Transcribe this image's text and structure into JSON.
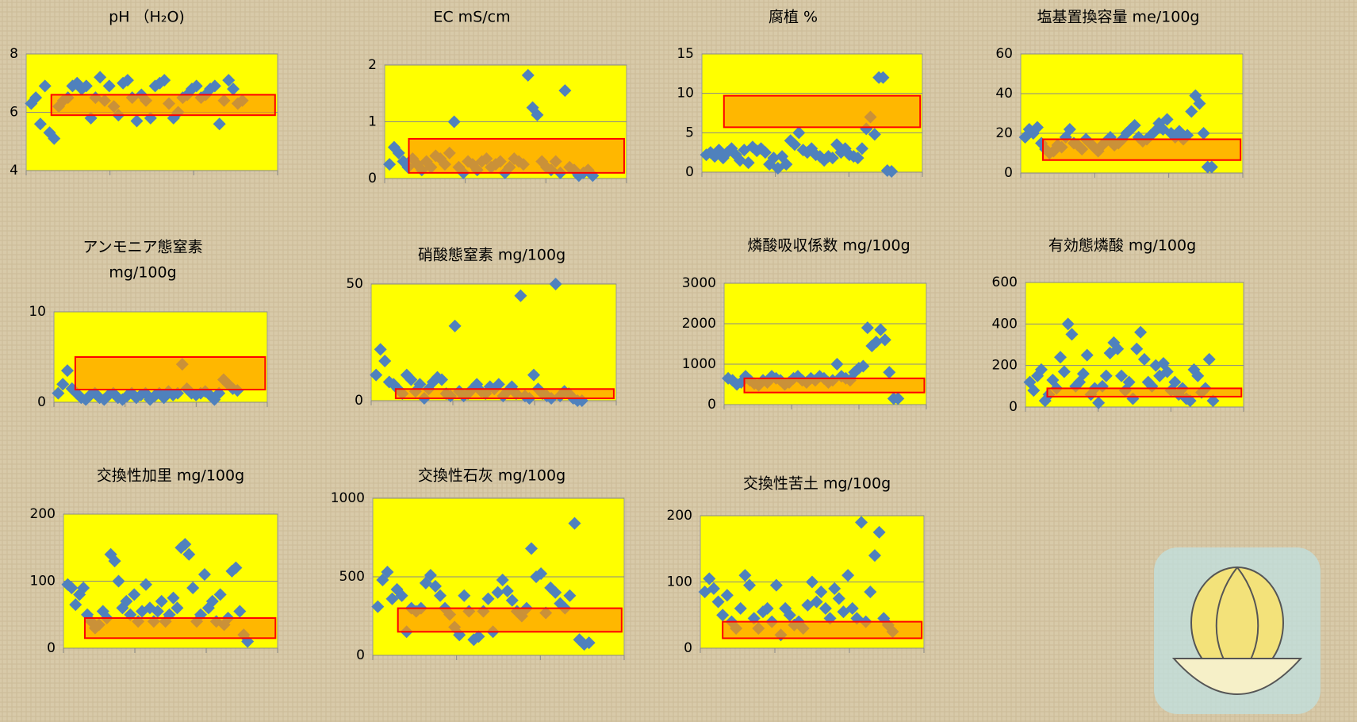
{
  "chart_data": [
    {
      "type": "scatter",
      "title": [
        "pH （H₂O)"
      ],
      "ylim": [
        4,
        8
      ],
      "yticks": [
        4,
        6,
        8
      ],
      "color": "#4f81bd",
      "plot_color": "#ffff00",
      "target_range": [
        5.9,
        6.6
      ],
      "target_color": "#ff9900",
      "values": [
        6.3,
        6.5,
        5.6,
        6.9,
        5.3,
        5.1,
        6.2,
        6.4,
        6.5,
        6.9,
        7.0,
        6.8,
        6.9,
        5.8,
        6.5,
        7.2,
        6.4,
        6.9,
        6.2,
        5.9,
        7.0,
        7.1,
        6.5,
        5.7,
        6.6,
        6.4,
        5.8,
        6.9,
        7.0,
        7.1,
        6.3,
        5.8,
        6.0,
        6.5,
        6.6,
        6.8,
        6.9,
        6.5,
        6.6,
        6.8,
        6.9,
        5.6,
        6.4,
        7.1,
        6.8,
        6.3,
        6.4
      ]
    },
    {
      "type": "scatter",
      "title": [
        "EC mS/cm"
      ],
      "ylim": [
        0,
        2
      ],
      "yticks": [
        0,
        1,
        2
      ],
      "color": "#4f81bd",
      "plot_color": "#ffff00",
      "target_range": [
        0.1,
        0.7
      ],
      "target_color": "#ff9900",
      "values": [
        0.25,
        0.55,
        0.45,
        0.3,
        0.2,
        0.35,
        0.25,
        0.15,
        0.3,
        0.2,
        0.4,
        0.35,
        0.25,
        0.45,
        1.0,
        0.2,
        0.1,
        0.3,
        0.25,
        0.15,
        0.3,
        0.35,
        0.2,
        0.25,
        0.3,
        0.1,
        0.2,
        0.35,
        0.3,
        0.25,
        1.82,
        1.25,
        1.12,
        0.3,
        0.2,
        0.15,
        0.3,
        0.1,
        1.55,
        0.2,
        0.15,
        0.05,
        0.1,
        0.15,
        0.05
      ]
    },
    {
      "type": "scatter",
      "title": [
        "腐植 %"
      ],
      "ylim": [
        0,
        15
      ],
      "yticks": [
        0,
        5,
        10,
        15
      ],
      "color": "#4f81bd",
      "plot_color": "#ffff00",
      "target_range": [
        5.7,
        9.7
      ],
      "target_color": "#ff9900",
      "values": [
        2.2,
        2.5,
        2.0,
        2.8,
        1.8,
        2.5,
        3.0,
        2.2,
        1.5,
        2.8,
        1.2,
        3.2,
        2.7,
        3.0,
        2.5,
        1.0,
        1.8,
        0.5,
        2.0,
        1.0,
        4.0,
        3.5,
        5.0,
        2.8,
        2.5,
        3.0,
        2.2,
        2.0,
        1.5,
        2.0,
        1.8,
        3.5,
        2.5,
        3.0,
        2.2,
        2.0,
        1.8,
        3.0,
        5.5,
        7.0,
        4.8,
        12.0,
        12.0,
        0.2,
        0.1
      ]
    },
    {
      "type": "scatter",
      "title": [
        "塩基置換容量 me/100g"
      ],
      "ylim": [
        0,
        60
      ],
      "yticks": [
        0,
        20,
        40,
        60
      ],
      "color": "#4f81bd",
      "plot_color": "#ffff00",
      "target_range": [
        6.5,
        17
      ],
      "target_color": "#ff9900",
      "values": [
        18,
        22,
        20,
        23,
        15,
        12,
        10,
        11,
        14,
        13,
        18,
        22,
        15,
        14,
        12,
        17,
        15,
        13,
        11,
        14,
        16,
        18,
        14,
        15,
        17,
        20,
        22,
        24,
        18,
        16,
        17,
        19,
        21,
        25,
        22,
        27,
        20,
        18,
        21,
        17,
        19,
        31,
        39,
        35,
        20,
        3,
        3
      ]
    },
    {
      "type": "scatter",
      "title": [
        "アンモニア態窒素",
        "mg/100g"
      ],
      "ylim": [
        0,
        10
      ],
      "yticks": [
        0,
        10
      ],
      "color": "#4f81bd",
      "plot_color": "#ffff00",
      "target_range": [
        1.4,
        5
      ],
      "target_color": "#ff9900",
      "values": [
        1.0,
        2.0,
        3.5,
        1.5,
        1.0,
        0.5,
        0.3,
        0.8,
        1.0,
        0.5,
        0.3,
        0.8,
        1.0,
        0.5,
        0.3,
        0.7,
        1.0,
        0.5,
        0.8,
        1.0,
        0.3,
        0.7,
        1.0,
        0.5,
        1.2,
        0.8,
        1.0,
        4.2,
        1.5,
        1.0,
        0.8,
        1.0,
        1.2,
        0.8,
        0.3,
        1.0,
        2.5,
        2.0,
        1.5,
        1.3
      ]
    },
    {
      "type": "scatter",
      "title": [
        "硝酸態窒素 mg/100g"
      ],
      "ylim": [
        0,
        50
      ],
      "yticks": [
        0,
        50
      ],
      "color": "#4f81bd",
      "plot_color": "#ffff00",
      "target_range": [
        1,
        5
      ],
      "target_color": "#ff9900",
      "values": [
        11,
        22,
        17,
        8,
        7,
        5,
        3,
        11,
        9,
        4,
        7,
        1,
        5,
        8,
        10,
        9,
        3,
        2,
        32,
        4,
        2,
        3,
        5,
        7,
        4,
        3,
        6,
        5,
        7,
        2,
        4,
        6,
        3,
        45,
        2,
        1,
        11,
        5,
        3,
        2,
        1,
        50,
        2,
        4,
        3,
        1,
        0,
        0
      ]
    },
    {
      "type": "scatter",
      "title": [
        "燐酸吸収係数 mg/100g"
      ],
      "ylim": [
        0,
        3000
      ],
      "yticks": [
        0,
        1000,
        2000,
        3000
      ],
      "color": "#4f81bd",
      "plot_color": "#ffff00",
      "target_range": [
        300,
        650
      ],
      "target_color": "#ff9900",
      "values": [
        650,
        600,
        500,
        550,
        700,
        600,
        520,
        480,
        600,
        550,
        700,
        650,
        600,
        500,
        550,
        650,
        700,
        600,
        550,
        650,
        600,
        700,
        650,
        550,
        600,
        1000,
        700,
        650,
        600,
        800,
        900,
        950,
        1900,
        1450,
        1550,
        1850,
        1600,
        800,
        150,
        150
      ]
    },
    {
      "type": "scatter",
      "title": [
        "有効態燐酸 mg/100g"
      ],
      "ylim": [
        0,
        600
      ],
      "yticks": [
        0,
        200,
        400,
        600
      ],
      "color": "#4f81bd",
      "plot_color": "#ffff00",
      "target_range": [
        50,
        90
      ],
      "target_color": "#ff9900",
      "values": [
        120,
        80,
        150,
        180,
        30,
        60,
        130,
        90,
        240,
        170,
        400,
        350,
        100,
        120,
        160,
        250,
        60,
        90,
        20,
        100,
        150,
        260,
        310,
        280,
        150,
        80,
        120,
        40,
        280,
        360,
        230,
        120,
        100,
        200,
        150,
        210,
        170,
        80,
        120,
        60,
        90,
        40,
        30,
        180,
        150,
        70,
        90,
        230,
        30
      ]
    },
    {
      "type": "scatter",
      "title": [
        "交換性加里 mg/100g"
      ],
      "ylim": [
        0,
        200
      ],
      "yticks": [
        0,
        100,
        200
      ],
      "color": "#4f81bd",
      "plot_color": "#ffff00",
      "target_range": [
        15,
        45
      ],
      "target_color": "#ff9900",
      "values": [
        95,
        90,
        65,
        80,
        90,
        50,
        40,
        30,
        35,
        55,
        45,
        140,
        130,
        100,
        60,
        70,
        50,
        80,
        40,
        55,
        95,
        60,
        40,
        55,
        70,
        40,
        50,
        75,
        60,
        150,
        155,
        140,
        90,
        40,
        50,
        110,
        60,
        70,
        40,
        80,
        35,
        45,
        115,
        120,
        55,
        20,
        10
      ]
    },
    {
      "type": "scatter",
      "title": [
        "交換性石灰 mg/100g"
      ],
      "ylim": [
        0,
        1000
      ],
      "yticks": [
        0,
        500,
        1000
      ],
      "color": "#4f81bd",
      "plot_color": "#ffff00",
      "target_range": [
        150,
        300
      ],
      "target_color": "#ff9900",
      "values": [
        310,
        480,
        530,
        360,
        420,
        380,
        150,
        300,
        280,
        300,
        460,
        510,
        440,
        380,
        300,
        260,
        180,
        130,
        380,
        280,
        100,
        120,
        280,
        360,
        150,
        400,
        480,
        410,
        350,
        280,
        250,
        300,
        680,
        500,
        520,
        270,
        430,
        400,
        330,
        300,
        380,
        840,
        100,
        70,
        80
      ]
    },
    {
      "type": "scatter",
      "title": [
        "交換性苦土 mg/100g"
      ],
      "ylim": [
        0,
        200
      ],
      "yticks": [
        0,
        100,
        200
      ],
      "color": "#4f81bd",
      "plot_color": "#ffff00",
      "target_range": [
        15,
        40
      ],
      "target_color": "#ff9900",
      "values": [
        85,
        105,
        90,
        70,
        50,
        80,
        40,
        30,
        60,
        110,
        95,
        45,
        30,
        55,
        60,
        40,
        95,
        20,
        60,
        50,
        35,
        40,
        30,
        65,
        100,
        70,
        85,
        60,
        45,
        90,
        75,
        55,
        110,
        60,
        45,
        190,
        40,
        85,
        140,
        175,
        45,
        35,
        25
      ]
    }
  ]
}
